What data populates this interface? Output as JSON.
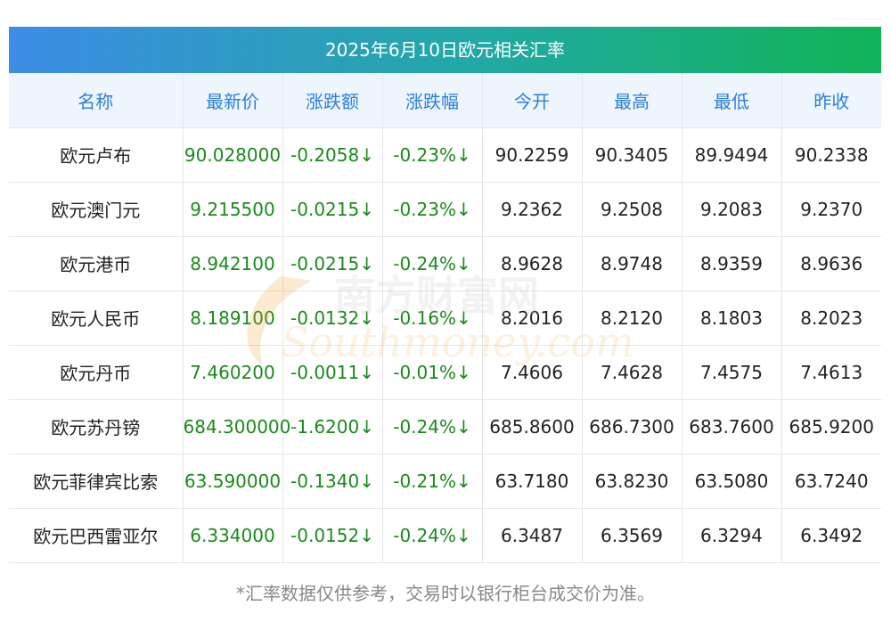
{
  "title": "2025年6月10日欧元相关汇率",
  "headers": [
    "名称",
    "最新价",
    "涨跌额",
    "涨跌幅",
    "今开",
    "最高",
    "最低",
    "昨收"
  ],
  "rows": [
    [
      "欧元卢布",
      "90.028000",
      "-0.2058↓",
      "-0.23%↓",
      "90.2259",
      "90.3405",
      "89.9494",
      "90.2338"
    ],
    [
      "欧元澳门元",
      "9.215500",
      "-0.0215↓",
      "-0.23%↓",
      "9.2362",
      "9.2508",
      "9.2083",
      "9.2370"
    ],
    [
      "欧元港币",
      "8.942100",
      "-0.0215↓",
      "-0.24%↓",
      "8.9628",
      "8.9748",
      "8.9359",
      "8.9636"
    ],
    [
      "欧元人民币",
      "8.189100",
      "-0.0132↓",
      "-0.16%↓",
      "8.2016",
      "8.2120",
      "8.1803",
      "8.2023"
    ],
    [
      "欧元丹币",
      "7.460200",
      "-0.0011↓",
      "-0.01%↓",
      "7.4606",
      "7.4628",
      "7.4575",
      "7.4613"
    ],
    [
      "欧元苏丹镑",
      "684.300000",
      "-1.6200↓",
      "-0.24%↓",
      "685.8600",
      "686.7300",
      "683.7600",
      "685.9200"
    ],
    [
      "欧元菲律宾比索",
      "63.590000",
      "-0.1340↓",
      "-0.21%↓",
      "63.7180",
      "63.8230",
      "63.5080",
      "63.7240"
    ],
    [
      "欧元巴西雷亚尔",
      "6.334000",
      "-0.0152↓",
      "-0.24%↓",
      "6.3487",
      "6.3569",
      "6.3294",
      "6.3492"
    ]
  ],
  "watermark": {
    "text_cn": "南方财富网",
    "text_en": "Southmoney.com"
  },
  "footnote": "*汇率数据仅供参考，交易时以银行柜台成交价为准。",
  "colors": {
    "header_text": "#2b7fdc",
    "header_bg": "#eef5fd",
    "change_down": "#1a8a1a",
    "title_gradient_start": "#3d8de6",
    "title_gradient_end": "#0fb356"
  }
}
